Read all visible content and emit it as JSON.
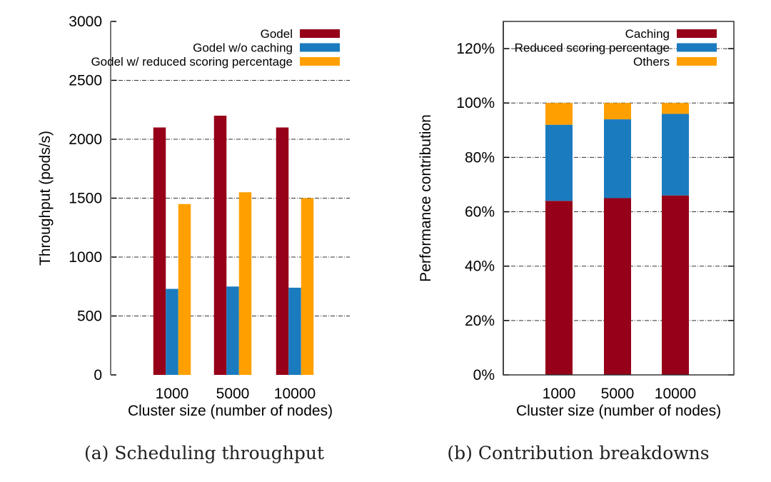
{
  "colors": {
    "red": "#960018",
    "blue": "#1b7bbf",
    "orange": "#ffa000"
  },
  "chart_data": [
    {
      "type": "bar",
      "caption": "(a)  Scheduling throughput",
      "categories": [
        "1000",
        "5000",
        "10000"
      ],
      "xlabel": "Cluster size (number of nodes)",
      "ylabel": "Throughput (pods/s)",
      "ylim": [
        0,
        3000
      ],
      "yticks": [
        "0",
        "500",
        "1000",
        "1500",
        "2000",
        "2500",
        "3000"
      ],
      "grid": true,
      "legend": "top-right",
      "series": [
        {
          "name": "Godel",
          "color": "#960018",
          "values": [
            2100,
            2200,
            2100
          ]
        },
        {
          "name": "Godel w/o caching",
          "color": "#1b7bbf",
          "values": [
            730,
            750,
            740
          ]
        },
        {
          "name": "Godel w/ reduced scoring percentage",
          "color": "#ffa000",
          "values": [
            1450,
            1550,
            1500
          ]
        }
      ]
    },
    {
      "type": "bar",
      "stacked": true,
      "caption": "(b)  Contribution breakdowns",
      "categories": [
        "1000",
        "5000",
        "10000"
      ],
      "xlabel": "Cluster size (number of nodes)",
      "ylabel": "Performance contribution",
      "ylim": [
        0,
        130
      ],
      "yticks": [
        "0%",
        "20%",
        "40%",
        "60%",
        "80%",
        "100%",
        "120%"
      ],
      "grid": true,
      "legend": "top-right",
      "series": [
        {
          "name": "Caching",
          "color": "#960018",
          "values": [
            64,
            65,
            66
          ]
        },
        {
          "name": "Reduced scoring percentage",
          "color": "#1b7bbf",
          "values": [
            28,
            29,
            30
          ]
        },
        {
          "name": "Others",
          "color": "#ffa000",
          "values": [
            8,
            6,
            4
          ]
        }
      ]
    }
  ]
}
